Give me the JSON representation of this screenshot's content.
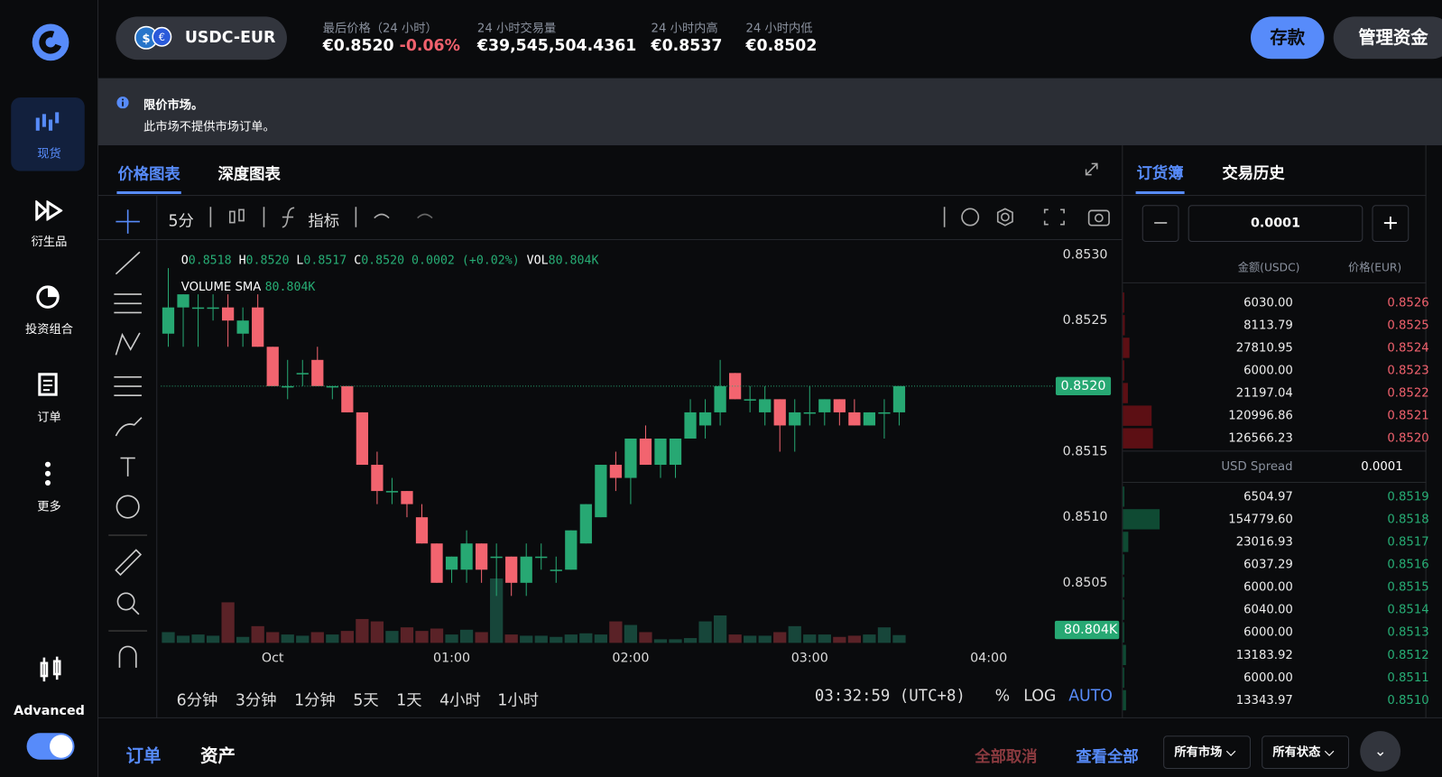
{
  "sidebar": {
    "items": [
      "现货",
      "衍生品",
      "投资组合",
      "订单",
      "更多"
    ],
    "advanced": "Advanced"
  },
  "header": {
    "pair": "USDC-EUR",
    "stats": [
      {
        "label": "最后价格（24 小时）",
        "value": "€0.8520",
        "change": "-0.06%"
      },
      {
        "label": "24 小时交易量",
        "value": "€39,545,504.4361"
      },
      {
        "label": "24 小时内高",
        "value": "€0.8537"
      },
      {
        "label": "24 小时内低",
        "value": "€0.8502"
      }
    ],
    "buttons": [
      "存款",
      "管理资金"
    ]
  },
  "notice": {
    "title": "限价市场。",
    "text": "此市场不提供市场订单。"
  },
  "chart_panel": {
    "tabs": [
      "价格图表",
      "深度图表"
    ],
    "interval": "5分",
    "indicators": "指标",
    "legend": [
      {
        "key": "O",
        "value": "0.8518"
      },
      {
        "key": "H",
        "value": "0.8520"
      },
      {
        "key": "L",
        "value": "0.8517"
      },
      {
        "key": "C",
        "value": "0.8520"
      }
    ],
    "legend_change": "0.0002 (+0.02%)",
    "legend_vol_key": "VOL",
    "legend_vol": "80.804K",
    "sma_key": "VOLUME SMA",
    "sma_value": "80.804K",
    "ranges": [
      "6分钟",
      "3分钟",
      "1分钟",
      "5天",
      "1天",
      "4小时",
      "1小时"
    ],
    "clock": "03:32:59 (UTC+8)",
    "percent": "%",
    "log": "LOG",
    "auto": "AUTO"
  },
  "chart_data": {
    "type": "candlestick",
    "categories": [
      null,
      null,
      null,
      null,
      null,
      null,
      null,
      "Oct",
      null,
      null,
      null,
      null,
      null,
      null,
      null,
      null,
      null,
      null,
      null,
      "01:00",
      null,
      null,
      null,
      null,
      null,
      null,
      null,
      null,
      null,
      null,
      null,
      "02:00",
      null,
      null,
      null,
      null,
      null,
      null,
      null,
      null,
      null,
      null,
      null,
      "03:00",
      null,
      null,
      null,
      null,
      null,
      null,
      null,
      null,
      null,
      null,
      null,
      "04:00",
      null,
      null,
      null,
      null
    ],
    "open": [
      0.8524,
      0.8526,
      0.8526,
      0.8526,
      0.8526,
      0.8524,
      0.8526,
      0.8523,
      0.852,
      0.8521,
      0.8522,
      0.852,
      0.852,
      0.8518,
      0.8514,
      0.8512,
      0.8512,
      0.851,
      0.8508,
      0.8506,
      0.8506,
      0.8508,
      0.8507,
      0.8507,
      0.8505,
      0.8507,
      0.8506,
      0.8506,
      0.8508,
      0.851,
      0.8514,
      0.8513,
      0.8516,
      0.8514,
      0.8514,
      0.8516,
      0.8517,
      0.8518,
      0.8521,
      0.8519,
      0.8518,
      0.8519,
      0.8517,
      0.8518,
      0.8518,
      0.8519,
      0.8518,
      0.8517,
      0.8518,
      0.8518,
      null,
      null,
      null,
      null,
      null,
      null,
      null,
      null,
      null,
      null
    ],
    "high": [
      0.8529,
      0.8527,
      0.8527,
      0.8527,
      0.8527,
      0.8526,
      0.8527,
      0.8523,
      0.8522,
      0.8522,
      0.8523,
      0.852,
      0.852,
      0.8518,
      0.8515,
      0.8513,
      0.8512,
      0.8511,
      0.8508,
      0.8507,
      0.8509,
      0.8508,
      0.8508,
      0.8507,
      0.8508,
      0.8508,
      0.8507,
      0.8509,
      0.8511,
      0.8514,
      0.8515,
      0.8516,
      0.8517,
      0.8516,
      0.8516,
      0.8519,
      0.8519,
      0.8522,
      0.8521,
      0.852,
      0.852,
      0.8519,
      0.8519,
      0.852,
      0.8519,
      0.8519,
      0.8519,
      0.8518,
      0.8519,
      0.852,
      null,
      null,
      null,
      null,
      null,
      null,
      null,
      null,
      null,
      null
    ],
    "low": [
      0.8523,
      0.8523,
      0.8523,
      0.8525,
      0.8523,
      0.8523,
      0.8523,
      0.852,
      0.8519,
      0.852,
      0.852,
      0.8519,
      0.8518,
      0.8514,
      0.8511,
      0.8511,
      0.851,
      0.8508,
      0.8505,
      0.8505,
      0.8505,
      0.8505,
      0.8504,
      0.8504,
      0.8504,
      0.8506,
      0.8505,
      0.8506,
      0.8508,
      0.851,
      0.8512,
      0.8511,
      0.8514,
      0.8513,
      0.8513,
      0.8516,
      0.8516,
      0.8517,
      0.8519,
      0.8518,
      0.8517,
      0.8515,
      0.8515,
      0.8517,
      0.8517,
      0.8517,
      0.8517,
      0.8517,
      0.8516,
      0.8517,
      null,
      null,
      null,
      null,
      null,
      null,
      null,
      null,
      null,
      null
    ],
    "close": [
      0.8526,
      0.8527,
      0.8526,
      0.8526,
      0.8525,
      0.8525,
      0.8523,
      0.852,
      0.852,
      0.8521,
      0.852,
      0.852,
      0.8518,
      0.8514,
      0.8512,
      0.8512,
      0.8511,
      0.8508,
      0.8505,
      0.8507,
      0.8508,
      0.8506,
      0.8507,
      0.8505,
      0.8507,
      0.8507,
      0.8506,
      0.8509,
      0.8511,
      0.8514,
      0.8513,
      0.8516,
      0.8514,
      0.8516,
      0.8516,
      0.8518,
      0.8518,
      0.852,
      0.8519,
      0.8519,
      0.8519,
      0.8517,
      0.8518,
      0.8518,
      0.8519,
      0.8518,
      0.8517,
      0.8518,
      0.8518,
      0.852,
      null,
      null,
      null,
      null,
      null,
      null,
      null,
      null,
      null,
      null
    ],
    "volume": [
      111600,
      74400,
      86800,
      74400,
      421600,
      62000,
      173600,
      111600,
      86800,
      74400,
      111600,
      86800,
      124000,
      248000,
      223200,
      124000,
      161200,
      124000,
      148800,
      86800,
      136400,
      111600,
      669600,
      86800,
      74400,
      74400,
      62000,
      86800,
      99200,
      86800,
      223200,
      186000,
      111600,
      37200,
      37200,
      49600,
      223200,
      285200,
      86800,
      74400,
      74400,
      111600,
      173600,
      86800,
      86800,
      62000,
      74400,
      86800,
      161200,
      80804,
      null,
      null,
      null,
      null,
      null,
      null,
      null,
      null,
      null,
      null
    ],
    "ylim": [
      0.85,
      0.8531
    ],
    "yticks": [
      {
        "value": 0.8505,
        "label": "0.8505"
      },
      {
        "value": 0.851,
        "label": "0.8510"
      },
      {
        "value": 0.8515,
        "label": "0.8515"
      },
      {
        "value": 0.852,
        "label": "0.8520"
      },
      {
        "value": 0.8525,
        "label": "0.8525"
      },
      {
        "value": 0.853,
        "label": "0.8530"
      }
    ],
    "last_price_label": "0.8520",
    "volume_label": "80.804K"
  },
  "order_book": {
    "tabs": [
      "订货簿",
      "交易历史"
    ],
    "increment": "0.0001",
    "amount_header": "金额(USDC)",
    "price_header": "价格(EUR)",
    "asks": [
      {
        "amount": "6030.00",
        "price": "0.8526"
      },
      {
        "amount": "8113.79",
        "price": "0.8525"
      },
      {
        "amount": "27810.95",
        "price": "0.8524"
      },
      {
        "amount": "6000.00",
        "price": "0.8523"
      },
      {
        "amount": "21197.04",
        "price": "0.8522"
      },
      {
        "amount": "120996.86",
        "price": "0.8521"
      },
      {
        "amount": "126566.23",
        "price": "0.8520"
      }
    ],
    "spread_label": "USD Spread",
    "spread": "0.0001",
    "bids": [
      {
        "amount": "6504.97",
        "price": "0.8519"
      },
      {
        "amount": "154779.60",
        "price": "0.8518"
      },
      {
        "amount": "23016.93",
        "price": "0.8517"
      },
      {
        "amount": "6037.29",
        "price": "0.8516"
      },
      {
        "amount": "6000.00",
        "price": "0.8515"
      },
      {
        "amount": "6040.00",
        "price": "0.8514"
      },
      {
        "amount": "6000.00",
        "price": "0.8513"
      },
      {
        "amount": "13183.92",
        "price": "0.8512"
      },
      {
        "amount": "6000.00",
        "price": "0.8511"
      },
      {
        "amount": "13343.97",
        "price": "0.8510"
      }
    ]
  },
  "bottom": {
    "tabs": [
      "订单",
      "资产"
    ],
    "cancel_all": "全部取消",
    "view_all": "查看全部",
    "filters": [
      "所有市场",
      "所有状态"
    ]
  }
}
